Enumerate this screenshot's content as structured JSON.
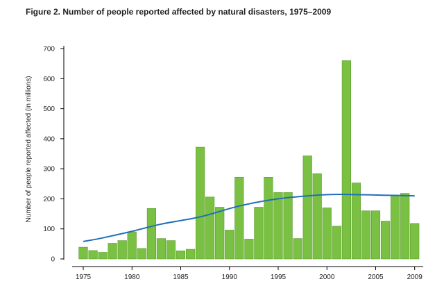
{
  "chart_data": {
    "type": "bar",
    "title": "Figure 2. Number of people reported affected by natural disasters, 1975–2009",
    "xlabel": "",
    "ylabel": "Number of people reported affected (in millions)",
    "ylim": [
      0,
      700
    ],
    "y_ticks": [
      "0",
      "100",
      "200",
      "300",
      "400",
      "500",
      "600",
      "700"
    ],
    "x_tick_labels": [
      "1975",
      "1980",
      "1985",
      "1990",
      "1995",
      "2000",
      "2005",
      "2009"
    ],
    "x": [
      1975,
      1976,
      1977,
      1978,
      1979,
      1980,
      1981,
      1982,
      1983,
      1984,
      1985,
      1986,
      1987,
      1988,
      1989,
      1990,
      1991,
      1992,
      1993,
      1994,
      1995,
      1996,
      1997,
      1998,
      1999,
      2000,
      2001,
      2002,
      2003,
      2004,
      2005,
      2006,
      2007,
      2008,
      2009
    ],
    "series": [
      {
        "type": "bar",
        "color": "#7ac143",
        "values": [
          39,
          28,
          22,
          52,
          61,
          90,
          35,
          168,
          68,
          61,
          27,
          32,
          372,
          206,
          172,
          96,
          272,
          66,
          172,
          272,
          221,
          221,
          68,
          343,
          284,
          170,
          109,
          660,
          253,
          160,
          160,
          126,
          211,
          218,
          118
        ]
      },
      {
        "type": "line",
        "color": "#1f6fb7",
        "x": [
          1975,
          1977,
          1980,
          1983,
          1987,
          1991,
          1995,
          2000,
          2003,
          2006,
          2009
        ],
        "values": [
          58,
          70,
          92,
          116,
          140,
          176,
          200,
          214,
          214,
          212,
          210
        ]
      }
    ],
    "grid": false,
    "legend": "none"
  }
}
